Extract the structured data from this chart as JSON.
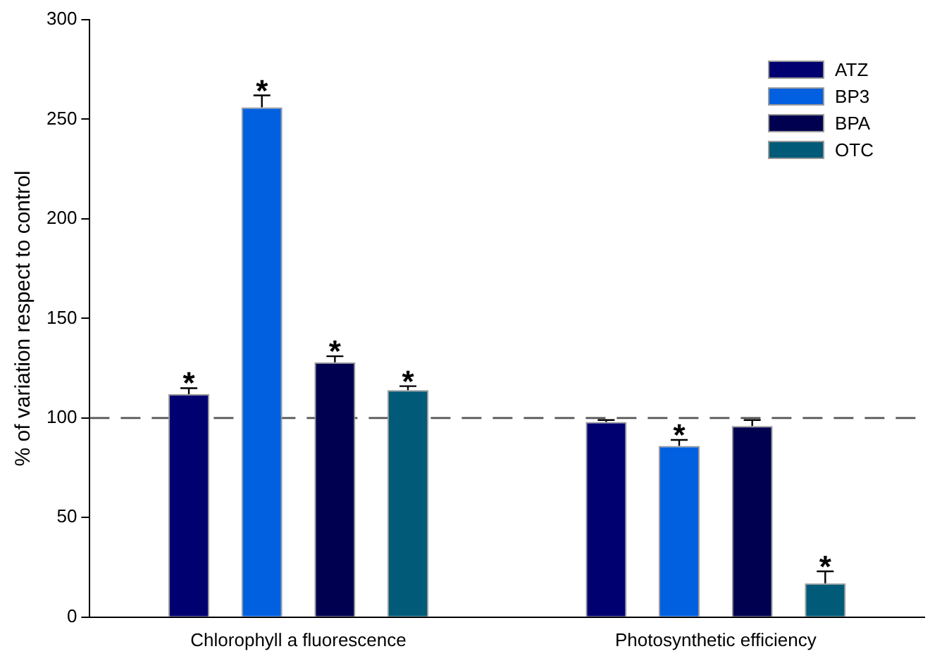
{
  "chart_data": {
    "type": "bar",
    "ylabel": "% of variation respect to control",
    "categories": [
      "Chlorophyll a fluorescence",
      "Photosynthetic efficiency"
    ],
    "series": [
      {
        "name": "ATZ",
        "color": "#000070",
        "values": [
          112,
          98
        ],
        "errors": [
          3,
          1
        ],
        "value_labels": [
          "*",
          null
        ]
      },
      {
        "name": "BP3",
        "color": "#0060e0",
        "values": [
          256,
          86
        ],
        "errors": [
          6,
          3
        ],
        "value_labels": [
          "*",
          "*"
        ]
      },
      {
        "name": "BPA",
        "color": "#000050",
        "values": [
          128,
          96
        ],
        "errors": [
          3,
          3
        ],
        "value_labels": [
          "*",
          null
        ]
      },
      {
        "name": "OTC",
        "color": "#005a78",
        "values": [
          114,
          17
        ],
        "errors": [
          2,
          6
        ],
        "value_labels": [
          "*",
          "*"
        ]
      }
    ],
    "ylim": [
      0,
      300
    ],
    "yticks": [
      0,
      50,
      100,
      150,
      200,
      250,
      300
    ],
    "ref_lines": [
      {
        "axis": "y",
        "value": 100,
        "color": "#555555",
        "line_style": "dashed"
      }
    ],
    "grid": false,
    "legend": "top right"
  }
}
